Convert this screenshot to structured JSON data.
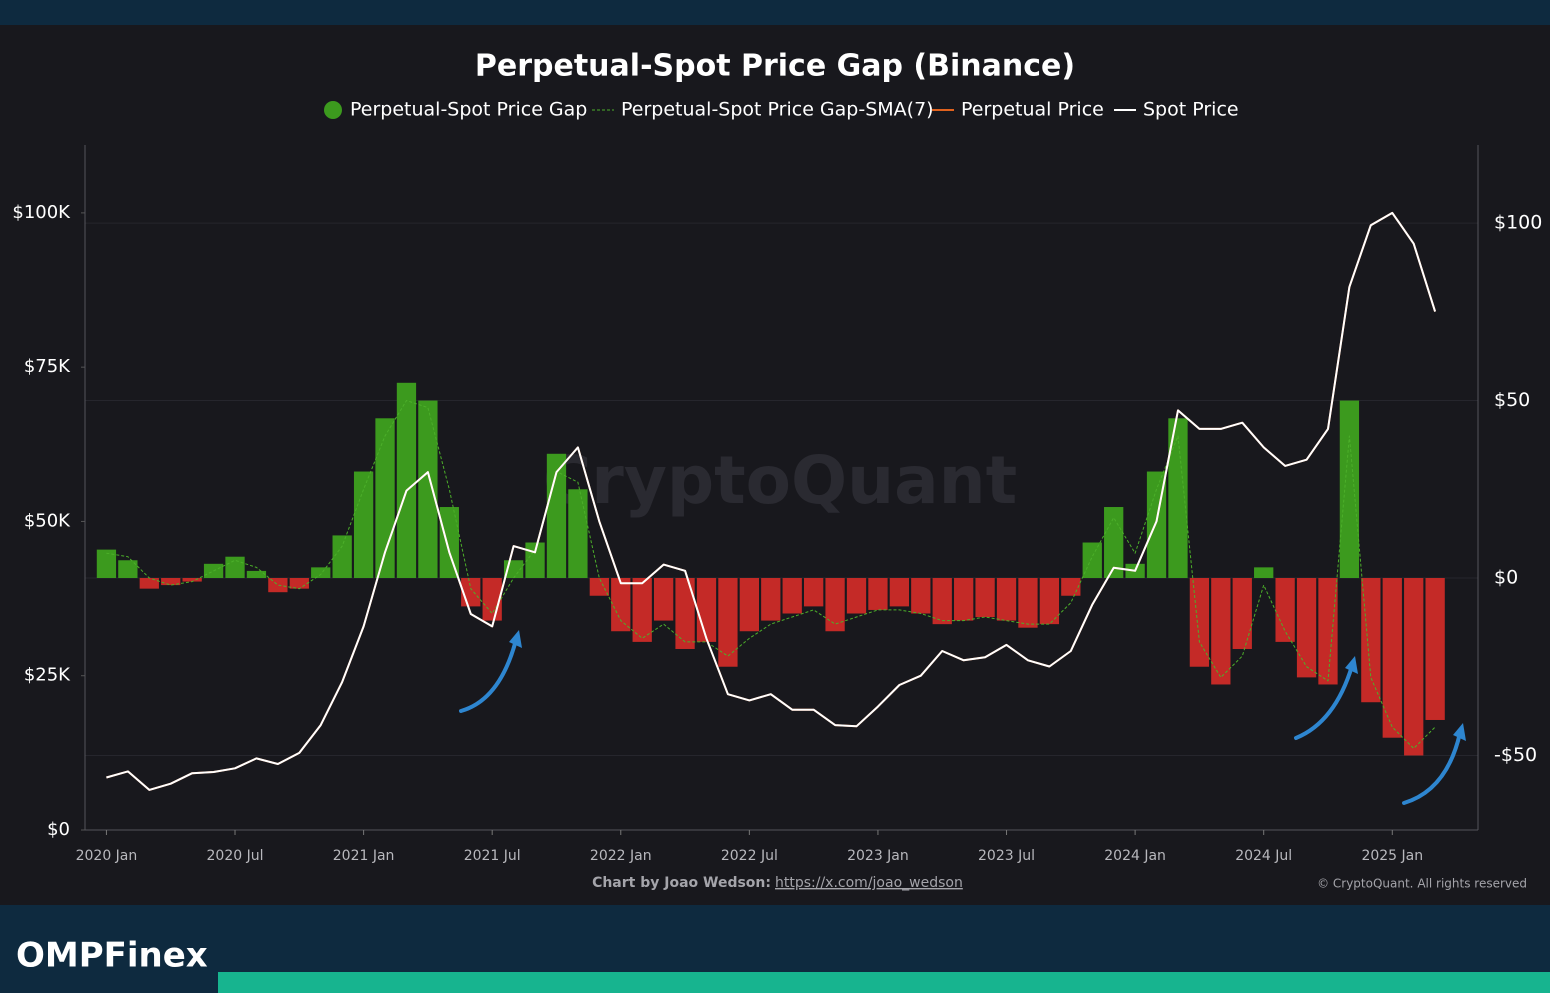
{
  "chart_data": {
    "type": "combo",
    "title": "Perpetual-Spot Price Gap (Binance)",
    "watermark": "CryptoQuant",
    "credit": "Chart by Joao Wedson:",
    "credit_link": "https://x.com/joao_wedson",
    "copyright": "© CryptoQuant. All rights reserved",
    "brand": "OMPFinex",
    "x": [
      "2020-01",
      "2020-02",
      "2020-03",
      "2020-04",
      "2020-05",
      "2020-06",
      "2020-07",
      "2020-08",
      "2020-09",
      "2020-10",
      "2020-11",
      "2020-12",
      "2021-01",
      "2021-02",
      "2021-03",
      "2021-04",
      "2021-05",
      "2021-06",
      "2021-07",
      "2021-08",
      "2021-09",
      "2021-10",
      "2021-11",
      "2021-12",
      "2022-01",
      "2022-02",
      "2022-03",
      "2022-04",
      "2022-05",
      "2022-06",
      "2022-07",
      "2022-08",
      "2022-09",
      "2022-10",
      "2022-11",
      "2022-12",
      "2023-01",
      "2023-02",
      "2023-03",
      "2023-04",
      "2023-05",
      "2023-06",
      "2023-07",
      "2023-08",
      "2023-09",
      "2023-10",
      "2023-11",
      "2023-12",
      "2024-01",
      "2024-02",
      "2024-03",
      "2024-04",
      "2024-05",
      "2024-06",
      "2024-07",
      "2024-08",
      "2024-09",
      "2024-10",
      "2024-11",
      "2024-12",
      "2025-01",
      "2025-02",
      "2025-03"
    ],
    "xlim": [
      "2019-12",
      "2025-05"
    ],
    "xticks": [
      {
        "value": "2020-01",
        "label": "2020 Jan"
      },
      {
        "value": "2020-07",
        "label": "2020 Jul"
      },
      {
        "value": "2021-01",
        "label": "2021 Jan"
      },
      {
        "value": "2021-07",
        "label": "2021 Jul"
      },
      {
        "value": "2022-01",
        "label": "2022 Jan"
      },
      {
        "value": "2022-07",
        "label": "2022 Jul"
      },
      {
        "value": "2023-01",
        "label": "2023 Jan"
      },
      {
        "value": "2023-07",
        "label": "2023 Jul"
      },
      {
        "value": "2024-01",
        "label": "2024 Jan"
      },
      {
        "value": "2024-07",
        "label": "2024 Jul"
      },
      {
        "value": "2025-01",
        "label": "2025 Jan"
      }
    ],
    "ylim": [
      0,
      111000
    ],
    "yticks": [
      {
        "value": 0,
        "label": "$0"
      },
      {
        "value": 25000,
        "label": "$25K"
      },
      {
        "value": 50000,
        "label": "$50K"
      },
      {
        "value": 75000,
        "label": "$75K"
      },
      {
        "value": 100000,
        "label": "$100K"
      }
    ],
    "y2lim": [
      -71,
      122
    ],
    "y2ticks": [
      {
        "value": -50,
        "label": "-$50"
      },
      {
        "value": 0,
        "label": "$0"
      },
      {
        "value": 50,
        "label": "$50"
      },
      {
        "value": 100,
        "label": "$100"
      }
    ],
    "grid": true,
    "series": [
      {
        "name": "Perpetual-Spot Price Gap",
        "type": "bar",
        "axis": "y2",
        "color": "#3c9a1e",
        "negative_color": "#c42a27",
        "values": [
          8,
          5,
          -3,
          -2,
          -1,
          4,
          6,
          2,
          -4,
          -3,
          3,
          12,
          30,
          45,
          55,
          50,
          20,
          -8,
          -12,
          5,
          10,
          35,
          25,
          -5,
          -15,
          -18,
          -12,
          -20,
          -18,
          -25,
          -15,
          -12,
          -10,
          -8,
          -15,
          -10,
          -9,
          -8,
          -10,
          -13,
          -12,
          -11,
          -12,
          -14,
          -13,
          -5,
          10,
          20,
          4,
          30,
          45,
          -25,
          -30,
          -20,
          3,
          -18,
          -28,
          -30,
          50,
          -35,
          -45,
          -50,
          -40
        ]
      },
      {
        "name": "Perpetual-Spot Price Gap-SMA(7)",
        "type": "line",
        "dashed": true,
        "axis": "y2",
        "color": "#4caf2a",
        "values": [
          7,
          6,
          0,
          -2,
          -1,
          2,
          5,
          3,
          -2,
          -3,
          1,
          9,
          25,
          40,
          50,
          48,
          25,
          -3,
          -10,
          0,
          8,
          30,
          27,
          0,
          -12,
          -17,
          -13,
          -18,
          -18,
          -22,
          -17,
          -13,
          -11,
          -9,
          -13,
          -11,
          -9,
          -9,
          -10,
          -12,
          -12,
          -11,
          -12,
          -13,
          -13,
          -7,
          6,
          17,
          7,
          25,
          40,
          -18,
          -28,
          -22,
          -2,
          -15,
          -25,
          -29,
          40,
          -28,
          -42,
          -48,
          -42
        ]
      },
      {
        "name": "Perpetual Price",
        "type": "line",
        "axis": "y",
        "color": "#e0621e",
        "values": [
          8500,
          9500,
          6500,
          7500,
          9200,
          9400,
          10000,
          11600,
          10700,
          12500,
          17000,
          24000,
          33000,
          45000,
          55000,
          58000,
          45000,
          35000,
          33000,
          46000,
          45000,
          58000,
          62000,
          50000,
          40000,
          40000,
          43000,
          42000,
          31000,
          22000,
          21000,
          22000,
          19500,
          19500,
          17000,
          16800,
          20000,
          23500,
          25000,
          29000,
          27500,
          28000,
          30000,
          27500,
          26500,
          29000,
          36500,
          42500,
          42000,
          50000,
          68000,
          65000,
          65000,
          66000,
          62000,
          59000,
          60000,
          65000,
          88000,
          98000,
          100000,
          95000,
          84000
        ]
      },
      {
        "name": "Spot Price",
        "type": "line",
        "axis": "y",
        "color": "#ffffff",
        "values": [
          8500,
          9500,
          6500,
          7500,
          9200,
          9400,
          10000,
          11600,
          10700,
          12500,
          17000,
          24000,
          33000,
          45000,
          55000,
          58000,
          45000,
          35000,
          33000,
          46000,
          45000,
          58000,
          62000,
          50000,
          40000,
          40000,
          43000,
          42000,
          31000,
          22000,
          21000,
          22000,
          19500,
          19500,
          17000,
          16800,
          20000,
          23500,
          25000,
          29000,
          27500,
          28000,
          30000,
          27500,
          26500,
          29000,
          36500,
          42500,
          42000,
          50000,
          68000,
          65000,
          65000,
          66000,
          62000,
          59000,
          60000,
          65000,
          88000,
          98000,
          100000,
          95000,
          84000
        ]
      }
    ]
  }
}
